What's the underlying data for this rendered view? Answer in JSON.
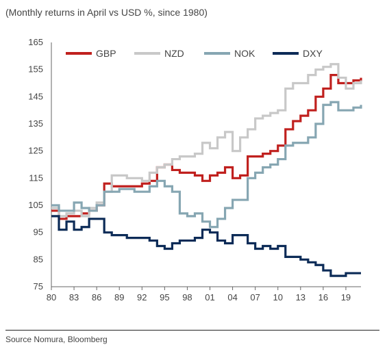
{
  "subtitle": "(Monthly returns in April vs USD %, since 1980)",
  "source": "Source  Nomura, Bloomberg",
  "chart_data": {
    "type": "line",
    "title": "",
    "xlabel": "",
    "ylabel": "",
    "xlim": [
      1980,
      2021
    ],
    "ylim": [
      75,
      165
    ],
    "yticks": [
      75,
      85,
      95,
      105,
      115,
      125,
      135,
      145,
      155,
      165
    ],
    "x_tick_values": [
      1980,
      1983,
      1986,
      1989,
      1992,
      1995,
      1998,
      2001,
      2004,
      2007,
      2010,
      2013,
      2016,
      2019
    ],
    "x_tick_labels": [
      "80",
      "83",
      "86",
      "89",
      "92",
      "95",
      "98",
      "01",
      "04",
      "07",
      "10",
      "13",
      "16",
      "19"
    ],
    "legend_position": "top",
    "step": true,
    "series": [
      {
        "name": "GBP",
        "color": "#c0201e",
        "x": [
          1980,
          1981,
          1982,
          1983,
          1984,
          1985,
          1986,
          1987,
          1988,
          1989,
          1990,
          1991,
          1992,
          1993,
          1994,
          1995,
          1996,
          1997,
          1998,
          1999,
          2000,
          2001,
          2002,
          2003,
          2004,
          2005,
          2006,
          2007,
          2008,
          2009,
          2010,
          2011,
          2012,
          2013,
          2014,
          2015,
          2016,
          2017,
          2018,
          2019,
          2020,
          2021
        ],
        "values": [
          103,
          100,
          101,
          101,
          102,
          103,
          105,
          113,
          112,
          112,
          112,
          112,
          113,
          114,
          119,
          120,
          118,
          117,
          117,
          116,
          114,
          116,
          117,
          119,
          115,
          116,
          123,
          123,
          124,
          125,
          127,
          133,
          136,
          138,
          140,
          145,
          148,
          153,
          150,
          150,
          151,
          152
        ]
      },
      {
        "name": "NZD",
        "color": "#c8c8c8",
        "x": [
          1980,
          1981,
          1982,
          1983,
          1984,
          1985,
          1986,
          1987,
          1988,
          1989,
          1990,
          1991,
          1992,
          1993,
          1994,
          1995,
          1996,
          1997,
          1998,
          1999,
          2000,
          2001,
          2002,
          2003,
          2004,
          2005,
          2006,
          2007,
          2008,
          2009,
          2010,
          2011,
          2012,
          2013,
          2014,
          2015,
          2016,
          2017,
          2018,
          2019,
          2020,
          2021
        ],
        "values": [
          104,
          101,
          102,
          103,
          101,
          104,
          106,
          110,
          116,
          116,
          115,
          115,
          114,
          117,
          119,
          120,
          122,
          123,
          123,
          124,
          128,
          126,
          130,
          132,
          125,
          130,
          133,
          137,
          138,
          139,
          140,
          148,
          150,
          150,
          153,
          155,
          156,
          157,
          152,
          148,
          150,
          151
        ]
      },
      {
        "name": "NOK",
        "color": "#86a6b2",
        "x": [
          1980,
          1981,
          1982,
          1983,
          1984,
          1985,
          1986,
          1987,
          1988,
          1989,
          1990,
          1991,
          1992,
          1993,
          1994,
          1995,
          1996,
          1997,
          1998,
          1999,
          2000,
          2001,
          2002,
          2003,
          2004,
          2005,
          2006,
          2007,
          2008,
          2009,
          2010,
          2011,
          2012,
          2013,
          2014,
          2015,
          2016,
          2017,
          2018,
          2019,
          2020,
          2021
        ],
        "values": [
          105,
          103,
          103,
          106,
          104,
          103,
          105,
          110,
          110,
          111,
          111,
          110,
          110,
          112,
          114,
          112,
          110,
          102,
          101,
          102,
          99,
          97,
          100,
          104,
          107,
          107,
          115,
          117,
          119,
          120,
          122,
          127,
          128,
          128,
          130,
          135,
          142,
          143,
          140,
          140,
          141,
          142
        ]
      },
      {
        "name": "DXY",
        "color": "#0c2b57",
        "x": [
          1980,
          1981,
          1982,
          1983,
          1984,
          1985,
          1986,
          1987,
          1988,
          1989,
          1990,
          1991,
          1992,
          1993,
          1994,
          1995,
          1996,
          1997,
          1998,
          1999,
          2000,
          2001,
          2002,
          2003,
          2004,
          2005,
          2006,
          2007,
          2008,
          2009,
          2010,
          2011,
          2012,
          2013,
          2014,
          2015,
          2016,
          2017,
          2018,
          2019,
          2020,
          2021
        ],
        "values": [
          101,
          96,
          99,
          96,
          97,
          100,
          100,
          95,
          94,
          94,
          93,
          93,
          93,
          92,
          90,
          89,
          91,
          92,
          92,
          93,
          96,
          95,
          92,
          91,
          94,
          94,
          91,
          89,
          90,
          89,
          90,
          86,
          86,
          85,
          84,
          83,
          81,
          79,
          79,
          80,
          80,
          80
        ]
      }
    ]
  }
}
